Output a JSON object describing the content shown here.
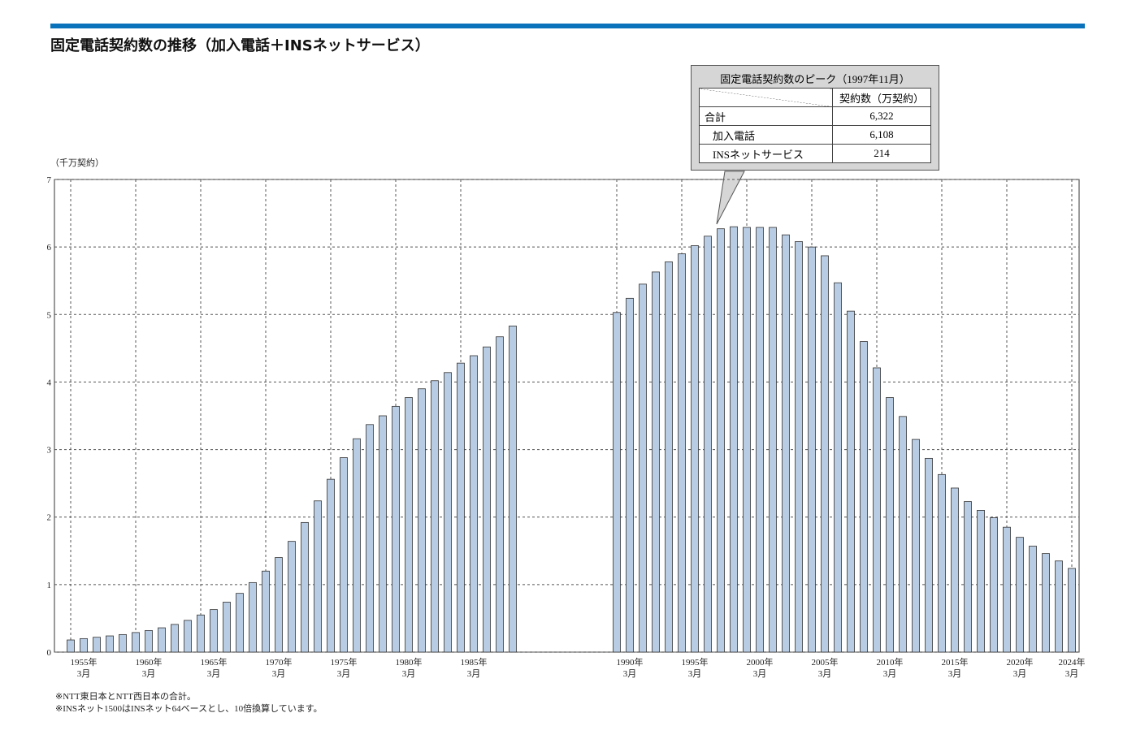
{
  "title": "固定電話契約数の推移（加入電話＋INSネットサービス）",
  "chart_data": {
    "type": "bar",
    "y_unit": "（千万契約）",
    "color": "#b8cce4",
    "grid": true,
    "ylim": [
      0,
      7
    ],
    "yticks": [
      0,
      1,
      2,
      3,
      4,
      5,
      6,
      7
    ],
    "categories": [
      null,
      "1955年\n3月",
      null,
      null,
      null,
      null,
      "1960年\n3月",
      null,
      null,
      null,
      null,
      "1965年\n3月",
      null,
      null,
      null,
      null,
      "1970年\n3月",
      null,
      null,
      null,
      null,
      "1975年\n3月",
      null,
      null,
      null,
      null,
      "1980年\n3月",
      null,
      null,
      null,
      null,
      "1985年\n3月",
      null,
      null,
      null,
      null,
      null,
      null,
      null,
      null,
      null,
      null,
      null,
      "1990年\n3月",
      null,
      null,
      null,
      null,
      "1995年\n3月",
      null,
      null,
      null,
      null,
      "2000年\n3月",
      null,
      null,
      null,
      null,
      "2005年\n3月",
      null,
      null,
      null,
      null,
      "2010年\n3月",
      null,
      null,
      null,
      null,
      "2015年\n3月",
      null,
      null,
      null,
      null,
      "2020年\n3月",
      null,
      null,
      null,
      "2024年\n3月"
    ],
    "values": [
      0.18,
      0.2,
      0.22,
      0.24,
      0.26,
      0.29,
      0.32,
      0.36,
      0.41,
      0.47,
      0.55,
      0.63,
      0.74,
      0.87,
      1.03,
      1.2,
      1.4,
      1.64,
      1.92,
      2.24,
      2.56,
      2.88,
      3.16,
      3.37,
      3.5,
      3.64,
      3.77,
      3.9,
      4.02,
      4.14,
      4.28,
      4.39,
      4.52,
      4.67,
      4.83,
      null,
      null,
      null,
      null,
      null,
      null,
      null,
      5.03,
      5.24,
      5.45,
      5.63,
      5.78,
      5.9,
      6.02,
      6.16,
      6.27,
      6.3,
      6.29,
      6.29,
      6.29,
      6.18,
      6.08,
      6.0,
      5.87,
      5.47,
      5.05,
      4.6,
      4.21,
      3.77,
      3.49,
      3.15,
      2.87,
      2.63,
      2.43,
      2.23,
      2.1,
      1.99,
      1.85,
      1.7,
      1.57,
      1.46,
      1.35,
      1.24
    ]
  },
  "callout": {
    "title": "固定電話契約数のピーク（1997年11月）",
    "column": "契約数（万契約）",
    "rows": [
      [
        "合計",
        "6,322"
      ],
      [
        "加入電話",
        "6,108"
      ],
      [
        "INSネットサービス",
        "214"
      ]
    ]
  },
  "notes": [
    "※NTT東日本とNTT西日本の合計。",
    "※INSネット1500はINSネット64ベースとし、10倍換算しています。"
  ]
}
